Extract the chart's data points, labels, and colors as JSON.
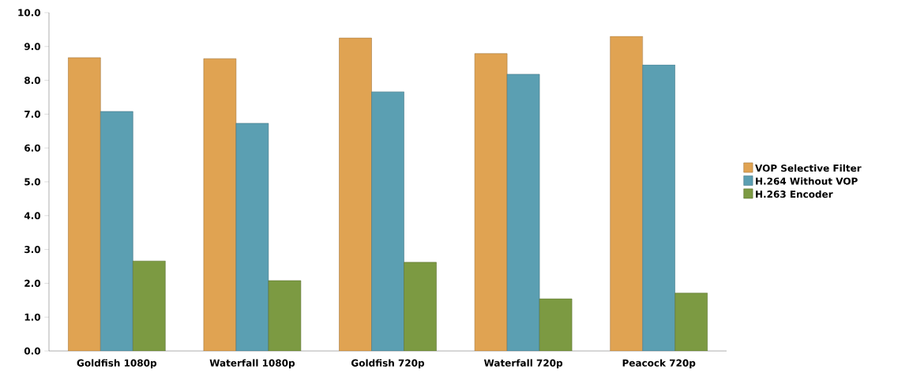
{
  "chart_data": {
    "type": "bar",
    "categories": [
      "Goldfish 1080p",
      "Waterfall 1080p",
      "Goldfish 720p",
      "Waterfall 720p",
      "Peacock 720p"
    ],
    "series": [
      {
        "name": "VOP Selective Filter",
        "color": "#e0a352",
        "values": [
          8.67,
          8.64,
          9.25,
          8.79,
          9.3
        ]
      },
      {
        "name": "H.264 Without VOP",
        "color": "#5b9fb2",
        "values": [
          7.08,
          6.73,
          7.66,
          8.18,
          8.46
        ]
      },
      {
        "name": "H.263 Encoder",
        "color": "#7c9a42",
        "values": [
          2.66,
          2.08,
          2.62,
          1.54,
          1.71
        ]
      }
    ],
    "ylim": [
      0,
      10
    ],
    "yticks": [
      {
        "value": 0,
        "label": "0.0"
      },
      {
        "value": 1,
        "label": "1.0"
      },
      {
        "value": 2,
        "label": "2.0"
      },
      {
        "value": 3,
        "label": "3.0"
      },
      {
        "value": 4,
        "label": "4.0"
      },
      {
        "value": 5,
        "label": "5.0"
      },
      {
        "value": 6,
        "label": "6.0"
      },
      {
        "value": 7,
        "label": "7.0"
      },
      {
        "value": 8,
        "label": "8.0"
      },
      {
        "value": 9,
        "label": "9.0"
      },
      {
        "value": 10,
        "label": "10.0"
      }
    ],
    "legend": "right"
  }
}
